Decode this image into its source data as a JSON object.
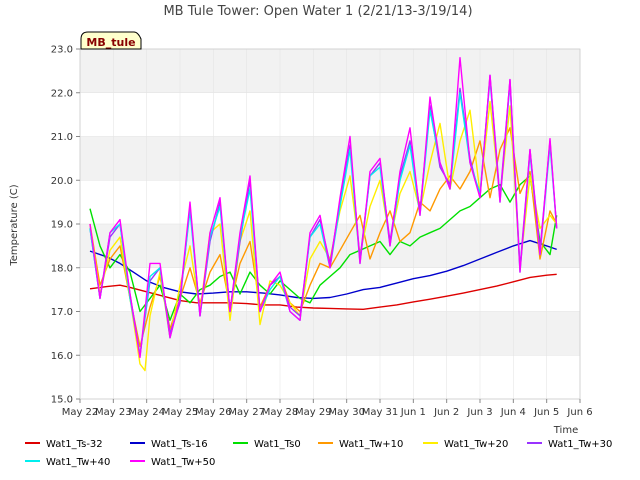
{
  "chart_data": {
    "type": "line",
    "title": "MB Tule Tower: Open Water 1 (2/21/13-3/19/14)",
    "badge": "MB_tule",
    "xlabel": "Time",
    "ylabel": "Temperature (C)",
    "xlim": [
      0,
      15
    ],
    "ylim": [
      15.0,
      23.0
    ],
    "x_ticks": [
      {
        "x": 0,
        "label": "May 22"
      },
      {
        "x": 1,
        "label": "May 23"
      },
      {
        "x": 2,
        "label": "May 24"
      },
      {
        "x": 3,
        "label": "May 25"
      },
      {
        "x": 4,
        "label": "May 26"
      },
      {
        "x": 5,
        "label": "May 27"
      },
      {
        "x": 6,
        "label": "May 28"
      },
      {
        "x": 7,
        "label": "May 29"
      },
      {
        "x": 8,
        "label": "May 30"
      },
      {
        "x": 9,
        "label": "May 31"
      },
      {
        "x": 10,
        "label": "Jun 1"
      },
      {
        "x": 11,
        "label": "Jun 2"
      },
      {
        "x": 12,
        "label": "Jun 3"
      },
      {
        "x": 13,
        "label": "Jun 4"
      },
      {
        "x": 14,
        "label": "Jun 5"
      },
      {
        "x": 15,
        "label": "Jun 6"
      }
    ],
    "y_ticks": [
      {
        "y": 15.0,
        "label": "15.0"
      },
      {
        "y": 16.0,
        "label": "16.0"
      },
      {
        "y": 17.0,
        "label": "17.0"
      },
      {
        "y": 18.0,
        "label": "18.0"
      },
      {
        "y": 19.0,
        "label": "19.0"
      },
      {
        "y": 20.0,
        "label": "20.0"
      },
      {
        "y": 21.0,
        "label": "21.0"
      },
      {
        "y": 22.0,
        "label": "22.0"
      },
      {
        "y": 23.0,
        "label": "23.0"
      }
    ],
    "grid": true,
    "legend_position": "bottom",
    "series": [
      {
        "name": "Wat1_Ts-32",
        "color": "#dd0000",
        "x": [
          0.3,
          0.8,
          1.2,
          1.5,
          2.0,
          2.5,
          3.0,
          3.5,
          4.0,
          4.5,
          5.0,
          5.5,
          6.0,
          6.5,
          7.0,
          7.5,
          8.0,
          8.5,
          9.0,
          9.5,
          10.0,
          10.5,
          11.0,
          11.5,
          12.0,
          12.5,
          13.0,
          13.5,
          14.0,
          14.3
        ],
        "y": [
          17.52,
          17.57,
          17.6,
          17.55,
          17.45,
          17.35,
          17.25,
          17.2,
          17.2,
          17.2,
          17.18,
          17.15,
          17.15,
          17.1,
          17.08,
          17.07,
          17.06,
          17.05,
          17.1,
          17.15,
          17.22,
          17.28,
          17.35,
          17.42,
          17.5,
          17.58,
          17.68,
          17.78,
          17.83,
          17.85
        ]
      },
      {
        "name": "Wat1_Ts-16",
        "color": "#0000cc",
        "x": [
          0.3,
          0.8,
          1.2,
          1.6,
          2.0,
          2.5,
          3.0,
          3.5,
          4.0,
          4.5,
          5.0,
          5.5,
          6.0,
          6.5,
          7.0,
          7.5,
          8.0,
          8.5,
          9.0,
          9.5,
          10.0,
          10.5,
          11.0,
          11.5,
          12.0,
          12.5,
          13.0,
          13.5,
          14.0,
          14.3
        ],
        "y": [
          18.38,
          18.25,
          18.1,
          17.9,
          17.7,
          17.55,
          17.45,
          17.4,
          17.42,
          17.45,
          17.45,
          17.42,
          17.38,
          17.32,
          17.3,
          17.32,
          17.4,
          17.5,
          17.55,
          17.65,
          17.75,
          17.82,
          17.92,
          18.05,
          18.2,
          18.35,
          18.5,
          18.62,
          18.5,
          18.42
        ]
      },
      {
        "name": "Wat1_Ts0",
        "color": "#00e000",
        "x": [
          0.3,
          0.6,
          0.9,
          1.2,
          1.5,
          1.8,
          2.1,
          2.4,
          2.7,
          3.0,
          3.3,
          3.6,
          3.9,
          4.2,
          4.5,
          4.8,
          5.1,
          5.4,
          5.7,
          6.0,
          6.3,
          6.6,
          6.9,
          7.2,
          7.5,
          7.8,
          8.1,
          8.4,
          8.7,
          9.0,
          9.3,
          9.6,
          9.9,
          10.2,
          10.5,
          10.8,
          11.1,
          11.4,
          11.7,
          12.0,
          12.3,
          12.6,
          12.9,
          13.2,
          13.5,
          13.8,
          14.1,
          14.3
        ],
        "y": [
          19.35,
          18.5,
          18.0,
          18.3,
          17.9,
          17.0,
          17.3,
          17.6,
          16.8,
          17.4,
          17.2,
          17.5,
          17.6,
          17.8,
          17.9,
          17.4,
          17.9,
          17.6,
          17.4,
          17.7,
          17.5,
          17.3,
          17.2,
          17.6,
          17.8,
          18.0,
          18.3,
          18.4,
          18.5,
          18.6,
          18.3,
          18.6,
          18.5,
          18.7,
          18.8,
          18.9,
          19.1,
          19.3,
          19.4,
          19.6,
          19.8,
          19.9,
          19.5,
          19.9,
          20.1,
          18.6,
          18.3,
          19.2
        ]
      },
      {
        "name": "Wat1_Tw+10",
        "color": "#ff9900",
        "x": [
          0.3,
          0.6,
          0.9,
          1.2,
          1.5,
          1.8,
          2.1,
          2.4,
          2.7,
          3.0,
          3.3,
          3.6,
          3.9,
          4.2,
          4.5,
          4.8,
          5.1,
          5.4,
          5.7,
          6.0,
          6.3,
          6.6,
          6.9,
          7.2,
          7.5,
          7.8,
          8.1,
          8.4,
          8.7,
          9.0,
          9.3,
          9.6,
          9.9,
          10.2,
          10.5,
          10.8,
          11.1,
          11.4,
          11.7,
          12.0,
          12.3,
          12.6,
          12.9,
          13.2,
          13.5,
          13.8,
          14.1,
          14.3
        ],
        "y": [
          19.0,
          17.6,
          18.2,
          18.5,
          17.3,
          16.2,
          17.1,
          17.8,
          16.6,
          17.3,
          18.0,
          17.2,
          17.9,
          18.3,
          17.1,
          18.1,
          18.6,
          17.1,
          17.6,
          17.8,
          17.2,
          17.0,
          17.6,
          18.1,
          18.0,
          18.4,
          18.8,
          19.2,
          18.2,
          18.8,
          19.3,
          18.6,
          18.8,
          19.5,
          19.3,
          19.8,
          20.1,
          19.8,
          20.2,
          20.9,
          19.6,
          20.7,
          21.2,
          19.7,
          20.2,
          18.2,
          19.3,
          19.0
        ]
      },
      {
        "name": "Wat1_Tw+20",
        "color": "#ffee00",
        "x": [
          0.3,
          0.6,
          0.9,
          1.2,
          1.5,
          1.8,
          1.95,
          2.1,
          2.4,
          2.7,
          3.0,
          3.3,
          3.6,
          3.9,
          4.2,
          4.5,
          4.8,
          5.1,
          5.4,
          5.7,
          6.0,
          6.3,
          6.6,
          6.9,
          7.2,
          7.5,
          7.8,
          8.1,
          8.4,
          8.7,
          9.0,
          9.3,
          9.6,
          9.9,
          10.2,
          10.5,
          10.8,
          11.1,
          11.4,
          11.7,
          12.0,
          12.3,
          12.6,
          12.9,
          13.2,
          13.5,
          13.8,
          14.1,
          14.3
        ],
        "y": [
          19.0,
          17.4,
          18.4,
          18.7,
          17.3,
          15.8,
          15.65,
          16.9,
          17.9,
          16.4,
          17.6,
          18.5,
          17.0,
          18.8,
          19.0,
          16.8,
          18.6,
          19.3,
          16.7,
          17.7,
          17.6,
          17.2,
          16.9,
          18.2,
          18.6,
          18.2,
          19.3,
          20.1,
          18.3,
          19.4,
          20.0,
          18.6,
          19.7,
          20.2,
          19.3,
          20.4,
          21.3,
          19.8,
          20.9,
          21.6,
          19.7,
          21.8,
          19.6,
          21.7,
          18.0,
          20.1,
          18.9,
          19.2,
          19.0
        ]
      },
      {
        "name": "Wat1_Tw+30",
        "color": "#9933ff",
        "x": [
          0.3,
          0.6,
          0.9,
          1.2,
          1.5,
          1.8,
          2.1,
          2.4,
          2.7,
          3.0,
          3.3,
          3.6,
          3.9,
          4.2,
          4.5,
          4.8,
          5.1,
          5.4,
          5.7,
          6.0,
          6.3,
          6.6,
          6.9,
          7.2,
          7.5,
          7.8,
          8.1,
          8.4,
          8.7,
          9.0,
          9.3,
          9.6,
          9.9,
          10.2,
          10.5,
          10.8,
          11.1,
          11.4,
          11.7,
          12.0,
          12.3,
          12.6,
          12.9,
          13.2,
          13.5,
          13.8,
          14.1,
          14.3
        ],
        "y": [
          18.9,
          17.3,
          18.7,
          19.0,
          17.4,
          16.0,
          17.7,
          18.0,
          16.5,
          17.2,
          19.4,
          16.9,
          18.6,
          19.5,
          17.0,
          18.6,
          20.0,
          17.0,
          17.6,
          17.8,
          17.1,
          16.9,
          18.7,
          19.1,
          18.1,
          19.5,
          20.8,
          18.2,
          20.1,
          20.4,
          18.6,
          20.1,
          20.9,
          19.3,
          21.7,
          20.3,
          19.9,
          22.1,
          20.5,
          19.6,
          22.4,
          19.6,
          22.3,
          18.0,
          20.7,
          18.4,
          20.9,
          18.9
        ]
      },
      {
        "name": "Wat1_Tw+40",
        "color": "#00eeee",
        "x": [
          0.3,
          0.6,
          0.9,
          1.2,
          1.5,
          1.8,
          2.1,
          2.4,
          2.7,
          3.0,
          3.3,
          3.6,
          3.9,
          4.2,
          4.5,
          4.8,
          5.1,
          5.4,
          5.7,
          6.0,
          6.3,
          6.6,
          6.9,
          7.2,
          7.5,
          7.8,
          8.1,
          8.4,
          8.7,
          9.0,
          9.3,
          9.6,
          9.9,
          10.2,
          10.5,
          10.8,
          11.1,
          11.4,
          11.7,
          12.0,
          12.3,
          12.6,
          12.9,
          13.2,
          13.5,
          13.8,
          14.1,
          14.3
        ],
        "y": [
          18.9,
          17.3,
          18.8,
          19.0,
          17.3,
          16.0,
          17.8,
          18.0,
          16.4,
          17.3,
          19.3,
          16.9,
          18.7,
          19.4,
          17.0,
          18.7,
          19.8,
          17.0,
          17.5,
          17.8,
          17.0,
          16.8,
          18.7,
          19.0,
          18.0,
          19.4,
          20.7,
          18.1,
          20.1,
          20.3,
          18.5,
          20.0,
          20.8,
          19.2,
          21.6,
          20.4,
          19.8,
          22.0,
          20.4,
          19.7,
          22.3,
          19.5,
          22.2,
          17.9,
          20.6,
          18.3,
          20.8,
          18.9
        ]
      },
      {
        "name": "Wat1_Tw+50",
        "color": "#ff00ff",
        "x": [
          0.3,
          0.6,
          0.9,
          1.2,
          1.5,
          1.8,
          2.1,
          2.4,
          2.7,
          3.0,
          3.3,
          3.6,
          3.9,
          4.2,
          4.5,
          4.8,
          5.1,
          5.4,
          5.7,
          6.0,
          6.3,
          6.6,
          6.9,
          7.2,
          7.5,
          7.8,
          8.1,
          8.4,
          8.7,
          9.0,
          9.3,
          9.6,
          9.9,
          10.2,
          10.5,
          10.8,
          11.1,
          11.4,
          11.7,
          12.0,
          12.3,
          12.6,
          12.9,
          13.2,
          13.5,
          13.8,
          14.1,
          14.3
        ],
        "y": [
          19.0,
          17.3,
          18.8,
          19.1,
          17.4,
          15.95,
          18.1,
          18.1,
          16.4,
          17.3,
          19.5,
          16.9,
          18.8,
          19.6,
          17.0,
          18.8,
          20.1,
          17.0,
          17.6,
          17.9,
          17.0,
          16.8,
          18.8,
          19.2,
          18.0,
          19.6,
          21.0,
          18.1,
          20.2,
          20.5,
          18.5,
          20.2,
          21.2,
          19.2,
          21.9,
          20.4,
          19.8,
          22.8,
          20.4,
          19.6,
          22.4,
          19.5,
          22.3,
          17.9,
          20.7,
          18.3,
          20.95,
          18.9
        ]
      }
    ]
  }
}
